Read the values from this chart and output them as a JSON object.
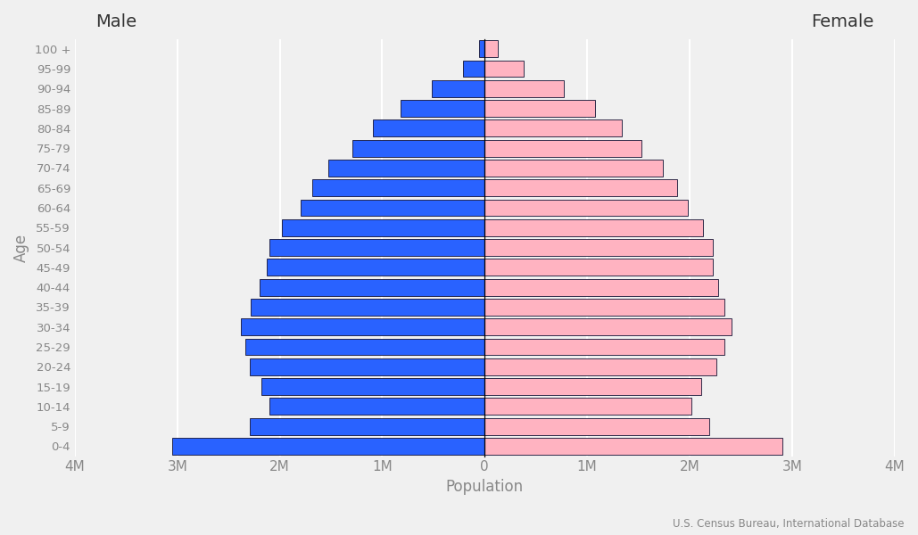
{
  "age_groups": [
    "0-4",
    "5-9",
    "10-14",
    "15-19",
    "20-24",
    "25-29",
    "30-34",
    "35-39",
    "40-44",
    "45-49",
    "50-54",
    "55-59",
    "60-64",
    "65-69",
    "70-74",
    "75-79",
    "80-84",
    "85-89",
    "90-94",
    "95-99",
    "100 +"
  ],
  "male": [
    3050000,
    2290000,
    2100000,
    2180000,
    2290000,
    2340000,
    2380000,
    2280000,
    2200000,
    2130000,
    2100000,
    1980000,
    1800000,
    1680000,
    1530000,
    1290000,
    1090000,
    820000,
    520000,
    210000,
    55000
  ],
  "female": [
    2910000,
    2190000,
    2020000,
    2110000,
    2260000,
    2340000,
    2410000,
    2340000,
    2280000,
    2230000,
    2230000,
    2130000,
    1980000,
    1880000,
    1740000,
    1530000,
    1340000,
    1080000,
    770000,
    380000,
    130000
  ],
  "male_color": "#2962ff",
  "female_color": "#ffb3c1",
  "bar_edge_color": "#111133",
  "bar_linewidth": 0.6,
  "xlim": [
    -4000000,
    4000000
  ],
  "xticks": [
    -4000000,
    -3000000,
    -2000000,
    -1000000,
    0,
    1000000,
    2000000,
    3000000,
    4000000
  ],
  "xtick_labels": [
    "4M",
    "3M",
    "2M",
    "1M",
    "0",
    "1M",
    "2M",
    "3M",
    "4M"
  ],
  "xlabel": "Population",
  "ylabel": "Age",
  "male_label": "Male",
  "female_label": "Female",
  "source_text": "U.S. Census Bureau, International Database",
  "background_color": "#f0f0f0",
  "grid_color": "#ffffff",
  "text_color": "#888888",
  "label_color": "#333333",
  "bar_height": 0.85
}
